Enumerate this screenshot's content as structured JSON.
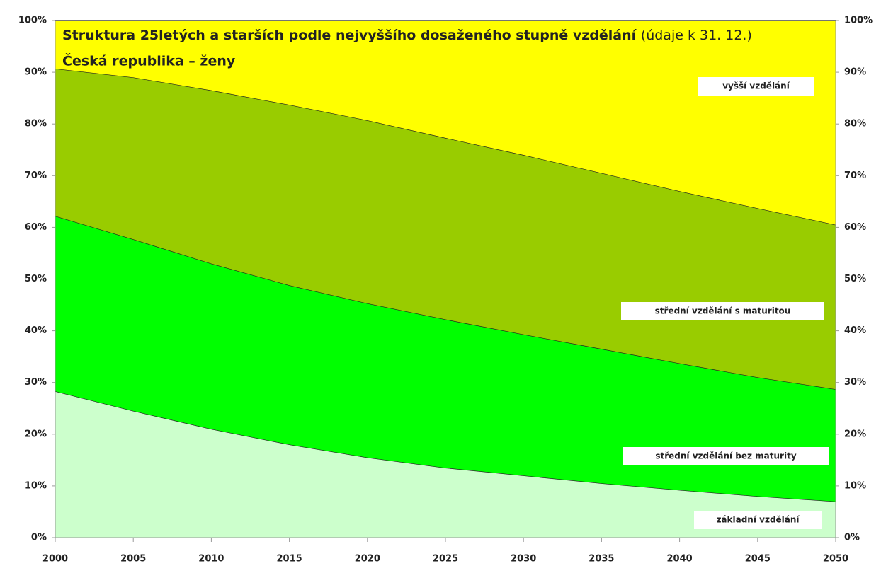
{
  "chart_data": {
    "type": "stacked_area",
    "title": "Struktura 25letých a starších podle nejvyššího dosaženého stupně vzdělání",
    "title_note": "(údaje k 31. 12.)",
    "subtitle": "Česká republika – ženy",
    "x": [
      2000,
      2005,
      2010,
      2015,
      2020,
      2025,
      2030,
      2035,
      2040,
      2045,
      2050
    ],
    "xlim": [
      2000,
      2050
    ],
    "xticks": [
      2000,
      2005,
      2010,
      2015,
      2020,
      2025,
      2030,
      2035,
      2040,
      2045,
      2050
    ],
    "ylim": [
      0,
      100
    ],
    "yticks": [
      {
        "value": 0,
        "label": "0%"
      },
      {
        "value": 10,
        "label": "10%"
      },
      {
        "value": 20,
        "label": "20%"
      },
      {
        "value": 30,
        "label": "30%"
      },
      {
        "value": 40,
        "label": "40%"
      },
      {
        "value": 50,
        "label": "50%"
      },
      {
        "value": 60,
        "label": "60%"
      },
      {
        "value": 70,
        "label": "70%"
      },
      {
        "value": 80,
        "label": "80%"
      },
      {
        "value": 90,
        "label": "90%"
      },
      {
        "value": 100,
        "label": "100%"
      }
    ],
    "y2lim": [
      0,
      100
    ],
    "y2ticks": [
      {
        "value": 0,
        "label": "0%"
      },
      {
        "value": 10,
        "label": "10%"
      },
      {
        "value": 20,
        "label": "20%"
      },
      {
        "value": 30,
        "label": "30%"
      },
      {
        "value": 40,
        "label": "40%"
      },
      {
        "value": 50,
        "label": "50%"
      },
      {
        "value": 60,
        "label": "60%"
      },
      {
        "value": 70,
        "label": "70%"
      },
      {
        "value": 80,
        "label": "80%"
      },
      {
        "value": 90,
        "label": "90%"
      },
      {
        "value": 100,
        "label": "100%"
      }
    ],
    "series": [
      {
        "name": "základní vzdělání",
        "color": "#ccffcc",
        "values": [
          28.3,
          24.5,
          21,
          18,
          15.5,
          13.5,
          12,
          10.5,
          9.2,
          8,
          7
        ]
      },
      {
        "name": "střední vzdělání bez maturity",
        "color": "#00ff00",
        "values": [
          33.9,
          33.2,
          32,
          30.8,
          29.8,
          28.7,
          27.3,
          26,
          24.5,
          23,
          21.7
        ]
      },
      {
        "name": "střední vzdělání s maturitou",
        "color": "#99cc00",
        "values": [
          28.5,
          31.3,
          33.5,
          34.9,
          35.4,
          35.1,
          34.7,
          34,
          33.3,
          32.7,
          31.8
        ]
      },
      {
        "name": "vyšší vzdělání",
        "color": "#ffff00",
        "values": [
          9.3,
          11,
          13.5,
          16.3,
          19.3,
          22.7,
          26,
          29.5,
          33,
          36.3,
          39.5
        ]
      }
    ]
  }
}
